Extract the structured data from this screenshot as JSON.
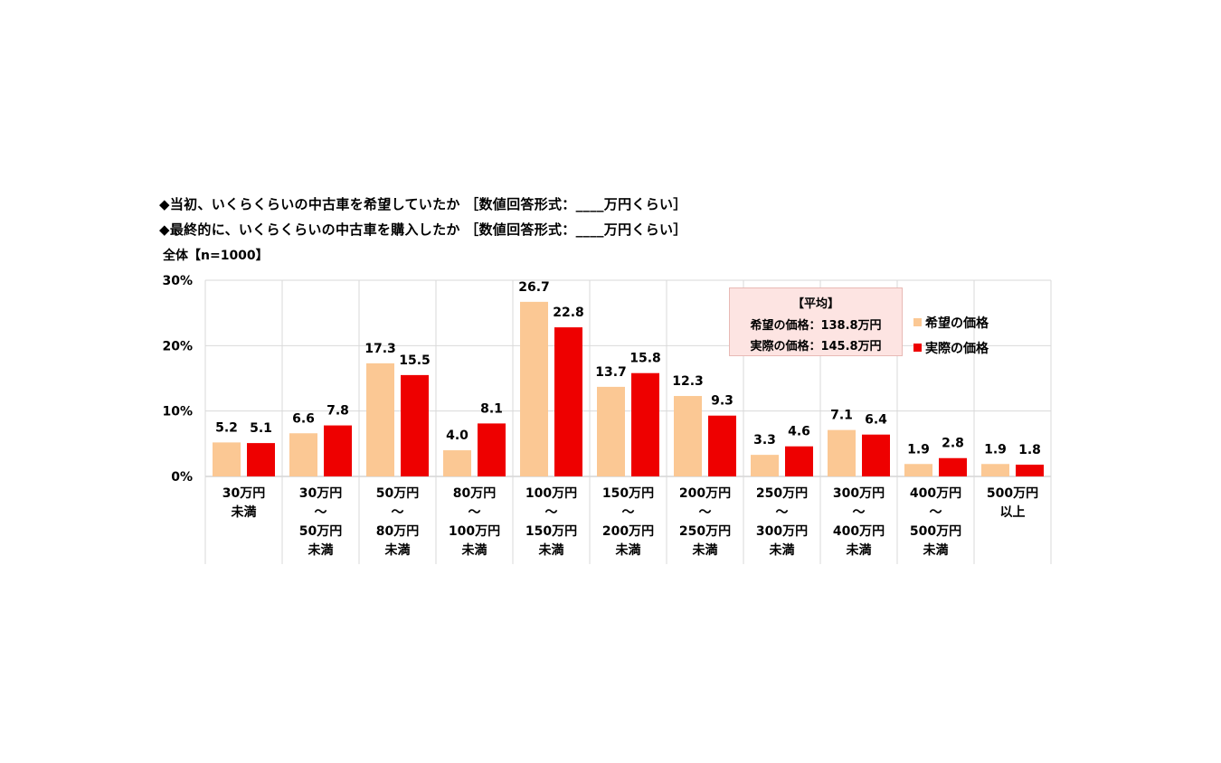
{
  "header": {
    "question1": "◆当初、いくらくらいの中古車を希望していたか ［数値回答形式：____万円くらい］",
    "question2": "◆最終的に、いくらくらいの中古車を購入したか ［数値回答形式：____万円くらい］",
    "sample": "全体【n=1000】"
  },
  "average_box": {
    "title": "【平均】",
    "hope": "希望の価格：138.8万円",
    "actual": "実際の価格：145.8万円"
  },
  "legend": {
    "hope": "希望の価格",
    "actual": "実際の価格"
  },
  "colors": {
    "hope": "#fbc894",
    "actual": "#ee0000",
    "grid": "#d9d9d9",
    "axis": "#bfbfbf"
  },
  "chart_data": {
    "type": "bar",
    "title": "",
    "xlabel": "",
    "ylabel": "",
    "ylim": [
      0,
      30
    ],
    "yticks": [
      0,
      10,
      20,
      30
    ],
    "ytick_labels": [
      "0%",
      "10%",
      "20%",
      "30%"
    ],
    "categories": [
      [
        "30万円",
        "未満"
      ],
      [
        "30万円",
        "～",
        "50万円",
        "未満"
      ],
      [
        "50万円",
        "～",
        "80万円",
        "未満"
      ],
      [
        "80万円",
        "～",
        "100万円",
        "未満"
      ],
      [
        "100万円",
        "～",
        "150万円",
        "未満"
      ],
      [
        "150万円",
        "～",
        "200万円",
        "未満"
      ],
      [
        "200万円",
        "～",
        "250万円",
        "未満"
      ],
      [
        "250万円",
        "～",
        "300万円",
        "未満"
      ],
      [
        "300万円",
        "～",
        "400万円",
        "未満"
      ],
      [
        "400万円",
        "～",
        "500万円",
        "未満"
      ],
      [
        "500万円",
        "以上"
      ]
    ],
    "series": [
      {
        "name": "希望の価格",
        "color": "#fbc894",
        "values": [
          5.2,
          6.6,
          17.3,
          4.0,
          26.7,
          13.7,
          12.3,
          3.3,
          7.1,
          1.9,
          1.9
        ],
        "labels": [
          "5.2",
          "6.6",
          "17.3",
          "4.0",
          "26.7",
          "13.7",
          "12.3",
          "3.3",
          "7.1",
          "1.9",
          "1.9"
        ]
      },
      {
        "name": "実際の価格",
        "color": "#ee0000",
        "values": [
          5.1,
          7.8,
          15.5,
          8.1,
          22.8,
          15.8,
          9.3,
          4.6,
          6.4,
          2.8,
          1.8
        ],
        "labels": [
          "5.1",
          "7.8",
          "15.5",
          "8.1",
          "22.8",
          "15.8",
          "9.3",
          "4.6",
          "6.4",
          "2.8",
          "1.8"
        ]
      }
    ]
  }
}
